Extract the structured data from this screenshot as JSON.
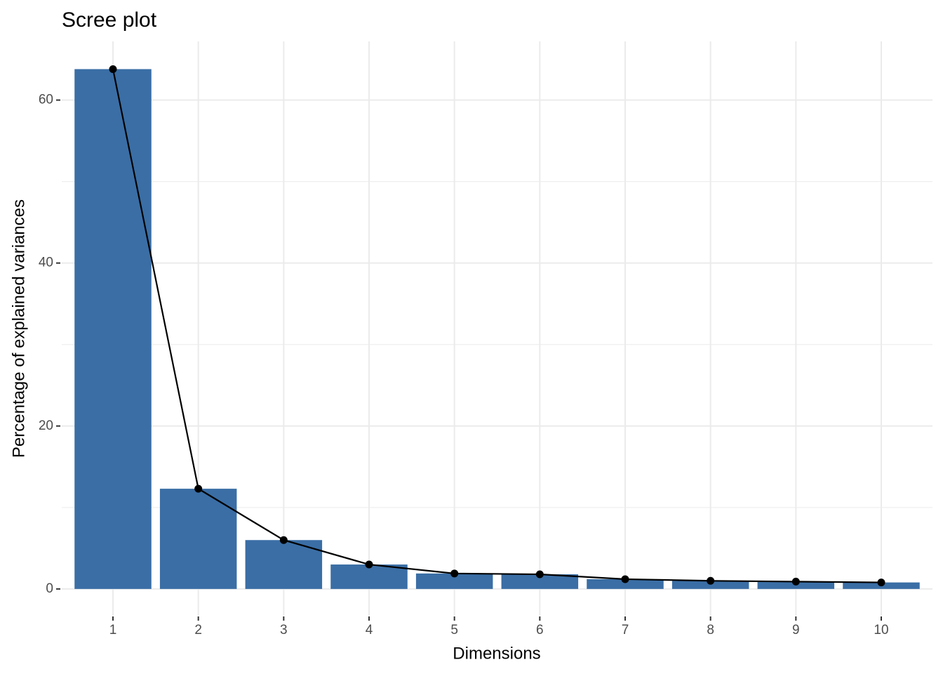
{
  "chart_data": {
    "type": "bar",
    "title": "Scree plot",
    "x_label": "Dimensions",
    "y_label": "Percentage of explained variances",
    "categories": [
      "1",
      "2",
      "3",
      "4",
      "5",
      "6",
      "7",
      "8",
      "9",
      "10"
    ],
    "values": [
      63.8,
      12.3,
      6.0,
      3.0,
      1.9,
      1.8,
      1.2,
      1.0,
      0.9,
      0.8
    ],
    "color": "#3a6ea5",
    "line_color": "#000000",
    "ylim": [
      -3.2,
      67.2
    ],
    "yticks": [
      0,
      20,
      40,
      60
    ],
    "grid": true
  }
}
